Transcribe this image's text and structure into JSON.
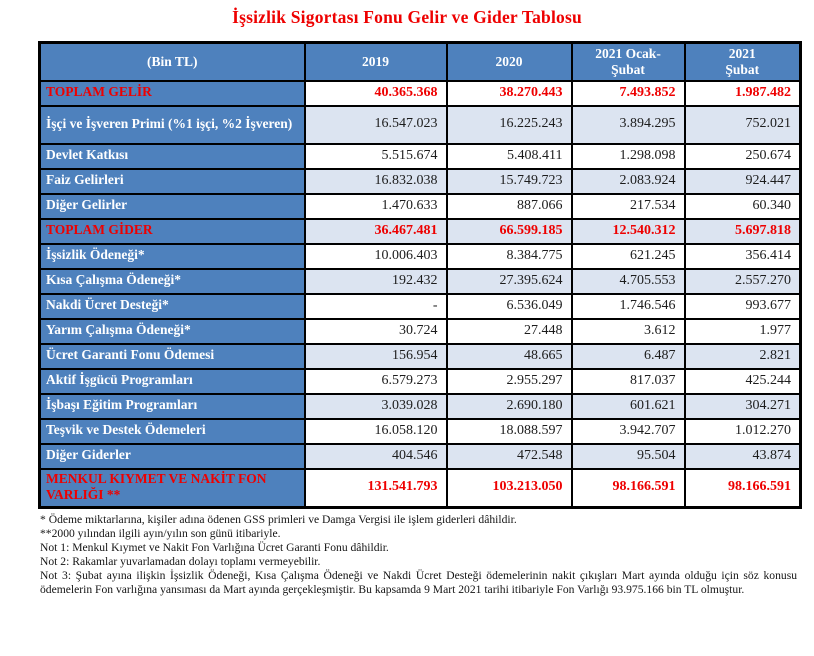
{
  "title": "İşsizlik Sigortası Fonu Gelir ve Gider Tablosu",
  "colors": {
    "header_blue": "#4E81BD",
    "band_blue": "#DCE4F1",
    "accent_red": "#EE0000"
  },
  "table": {
    "headers": [
      "(Bin TL)",
      "2019",
      "2020",
      "2021 Ocak-\nŞubat",
      "2021\nŞubat"
    ],
    "rows": [
      {
        "label": "TOPLAM GELİR",
        "values": [
          "40.365.368",
          "38.270.443",
          "7.493.852",
          "1.987.482"
        ],
        "emphasis": true,
        "band": "white",
        "tall": false
      },
      {
        "label": "İşçi ve İşveren Primi (%1 işçi, %2 İşveren)",
        "values": [
          "16.547.023",
          "16.225.243",
          "3.894.295",
          "752.021"
        ],
        "emphasis": false,
        "band": "blue",
        "tall": true
      },
      {
        "label": "Devlet Katkısı",
        "values": [
          "5.515.674",
          "5.408.411",
          "1.298.098",
          "250.674"
        ],
        "emphasis": false,
        "band": "white",
        "tall": false
      },
      {
        "label": "Faiz Gelirleri",
        "values": [
          "16.832.038",
          "15.749.723",
          "2.083.924",
          "924.447"
        ],
        "emphasis": false,
        "band": "blue",
        "tall": false
      },
      {
        "label": "Diğer Gelirler",
        "values": [
          "1.470.633",
          "887.066",
          "217.534",
          "60.340"
        ],
        "emphasis": false,
        "band": "white",
        "tall": false
      },
      {
        "label": "TOPLAM GİDER",
        "values": [
          "36.467.481",
          "66.599.185",
          "12.540.312",
          "5.697.818"
        ],
        "emphasis": true,
        "band": "blue",
        "tall": false
      },
      {
        "label": "İşsizlik Ödeneği*",
        "values": [
          "10.006.403",
          "8.384.775",
          "621.245",
          "356.414"
        ],
        "emphasis": false,
        "band": "white",
        "tall": false
      },
      {
        "label": "Kısa Çalışma Ödeneği*",
        "values": [
          "192.432",
          "27.395.624",
          "4.705.553",
          "2.557.270"
        ],
        "emphasis": false,
        "band": "blue",
        "tall": false
      },
      {
        "label": "Nakdi Ücret Desteği*",
        "values": [
          "-",
          "6.536.049",
          "1.746.546",
          "993.677"
        ],
        "emphasis": false,
        "band": "white",
        "tall": false
      },
      {
        "label": "Yarım Çalışma Ödeneği*",
        "values": [
          "30.724",
          "27.448",
          "3.612",
          "1.977"
        ],
        "emphasis": false,
        "band": "white",
        "tall": false
      },
      {
        "label": "Ücret Garanti Fonu Ödemesi",
        "values": [
          "156.954",
          "48.665",
          "6.487",
          "2.821"
        ],
        "emphasis": false,
        "band": "blue",
        "tall": false
      },
      {
        "label": "Aktif İşgücü Programları",
        "values": [
          "6.579.273",
          "2.955.297",
          "817.037",
          "425.244"
        ],
        "emphasis": false,
        "band": "white",
        "tall": false
      },
      {
        "label": "İşbaşı Eğitim Programları",
        "values": [
          "3.039.028",
          "2.690.180",
          "601.621",
          "304.271"
        ],
        "emphasis": false,
        "band": "blue",
        "tall": false
      },
      {
        "label": "Teşvik ve Destek Ödemeleri",
        "values": [
          "16.058.120",
          "18.088.597",
          "3.942.707",
          "1.012.270"
        ],
        "emphasis": false,
        "band": "white",
        "tall": false
      },
      {
        "label": "Diğer Giderler",
        "values": [
          "404.546",
          "472.548",
          "95.504",
          "43.874"
        ],
        "emphasis": false,
        "band": "blue",
        "tall": false
      },
      {
        "label": "MENKUL KIYMET VE NAKİT FON VARLIĞI **",
        "values": [
          "131.541.793",
          "103.213.050",
          "98.166.591",
          "98.166.591"
        ],
        "emphasis": true,
        "band": "white",
        "tall": true
      }
    ]
  },
  "footnotes": [
    {
      "text": "* Ödeme miktarlarına, kişiler adına ödenen GSS primleri ve Damga Vergisi ile işlem giderleri dâhildir.",
      "justify": false
    },
    {
      "text": "**2000 yılından ilgili ayın/yılın son günü itibariyle.",
      "justify": false
    },
    {
      "text": "Not 1: Menkul Kıymet ve Nakit Fon Varlığına Ücret Garanti Fonu dâhildir.",
      "justify": false
    },
    {
      "text": "Not 2: Rakamlar yuvarlamadan dolayı toplamı vermeyebilir.",
      "justify": false
    },
    {
      "text": "Not 3: Şubat ayına ilişkin İşsizlik Ödeneği, Kısa Çalışma Ödeneği ve Nakdi Ücret Desteği ödemelerinin nakit çıkışları Mart ayında olduğu için söz konusu ödemelerin Fon varlığına yansıması da Mart ayında gerçekleşmiştir. Bu kapsamda 9 Mart 2021 tarihi itibariyle Fon Varlığı 93.975.166 bin TL olmuştur.",
      "justify": true
    }
  ]
}
